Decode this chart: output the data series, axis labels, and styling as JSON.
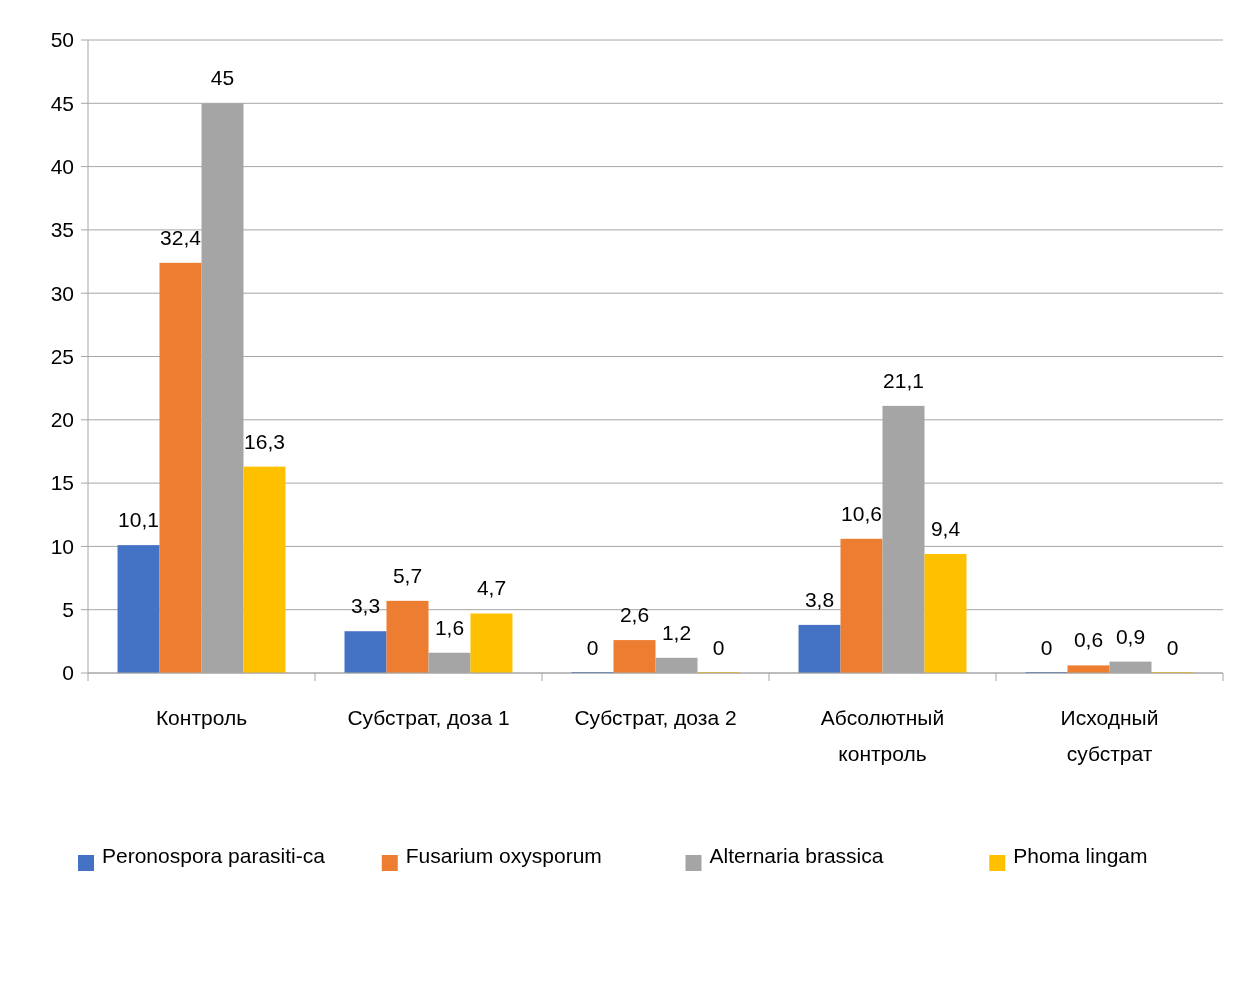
{
  "chart_data": {
    "type": "bar",
    "categories": [
      "Контроль",
      "Субстрат, доза 1",
      "Субстрат, доза 2",
      "Абсолютный контроль",
      "Исходный субстрат"
    ],
    "series": [
      {
        "name": "Peronospora parasiti-ca",
        "color": "#4472c4",
        "values": [
          10.1,
          3.3,
          0,
          3.8,
          0
        ],
        "value_labels": [
          "10,1",
          "3,3",
          "0",
          "3,8",
          "0"
        ]
      },
      {
        "name": "Fusarium oxysporum",
        "color": "#ed7d31",
        "values": [
          32.4,
          5.7,
          2.6,
          10.6,
          0.6
        ],
        "value_labels": [
          "32,4",
          "5,7",
          "2,6",
          "10,6",
          "0,6"
        ]
      },
      {
        "name": "Alternaria brassica",
        "color": "#a5a5a5",
        "values": [
          45,
          1.6,
          1.2,
          21.1,
          0.9
        ],
        "value_labels": [
          "45",
          "1,6",
          "1,2",
          "21,1",
          "0,9"
        ]
      },
      {
        "name": "Phoma lingam",
        "color": "#ffc000",
        "values": [
          16.3,
          4.7,
          0,
          9.4,
          0
        ],
        "value_labels": [
          "16,3",
          "4,7",
          "0",
          "9,4",
          "0"
        ]
      }
    ],
    "ylim": [
      0,
      50
    ],
    "yticks": [
      0,
      5,
      10,
      15,
      20,
      25,
      30,
      35,
      40,
      45,
      50
    ],
    "grid": "y",
    "legend": "bottom"
  }
}
